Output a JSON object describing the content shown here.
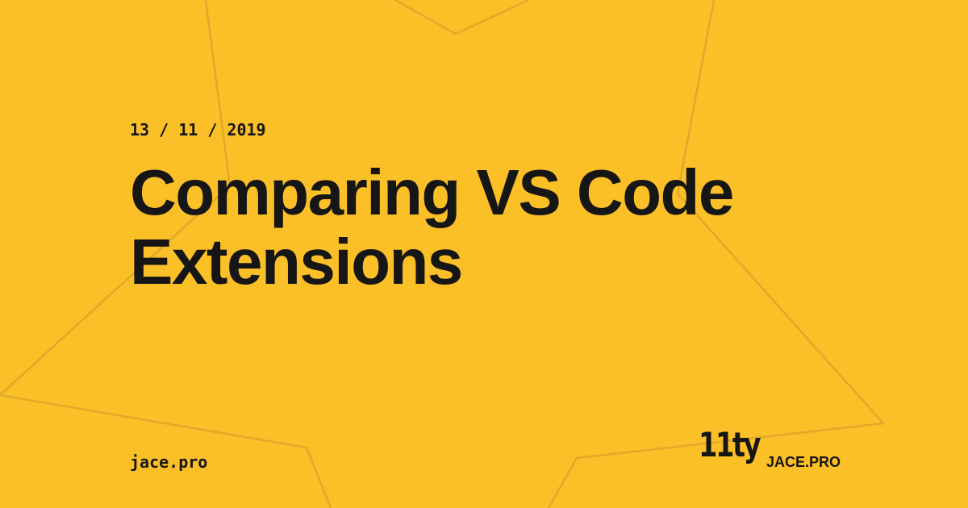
{
  "date": "13 / 11 / 2019",
  "title": "Comparing VS Code Extensions",
  "site": "jace.pro",
  "logo": {
    "mark": "11ty",
    "brand": "JACE.PRO"
  }
}
